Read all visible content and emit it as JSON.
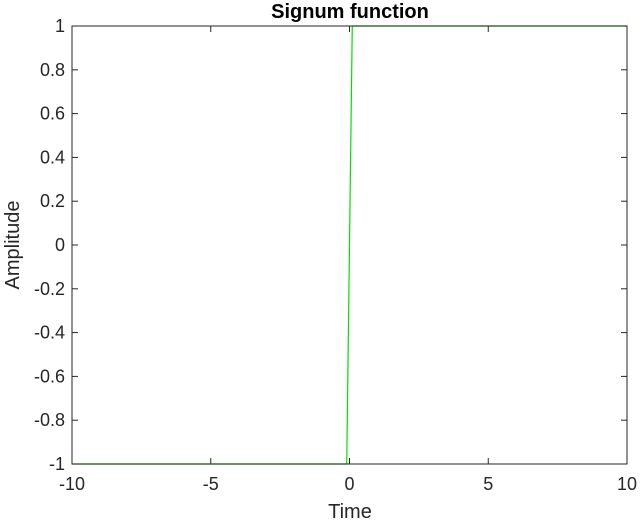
{
  "chart_data": {
    "type": "line",
    "title": "Signum function",
    "xlabel": "Time",
    "ylabel": "Amplitude",
    "xlim": [
      -10,
      10
    ],
    "ylim": [
      -1,
      1
    ],
    "x_ticks": [
      -10,
      -5,
      0,
      5,
      10
    ],
    "y_ticks": [
      -1,
      -0.8,
      -0.6,
      -0.4,
      -0.2,
      0,
      0.2,
      0.4,
      0.6,
      0.8,
      1
    ],
    "x_tick_labels": [
      "-10",
      "-5",
      "0",
      "5",
      "10"
    ],
    "y_tick_labels": [
      "-1",
      "-0.8",
      "-0.6",
      "-0.4",
      "-0.2",
      "0",
      "0.2",
      "0.4",
      "0.6",
      "0.8",
      "1"
    ],
    "grid": false,
    "box": true,
    "series": [
      {
        "color": "#00e000",
        "x": [
          -10,
          -0.1,
          0.1,
          10
        ],
        "y": [
          -1,
          -1,
          1,
          1
        ]
      }
    ]
  }
}
